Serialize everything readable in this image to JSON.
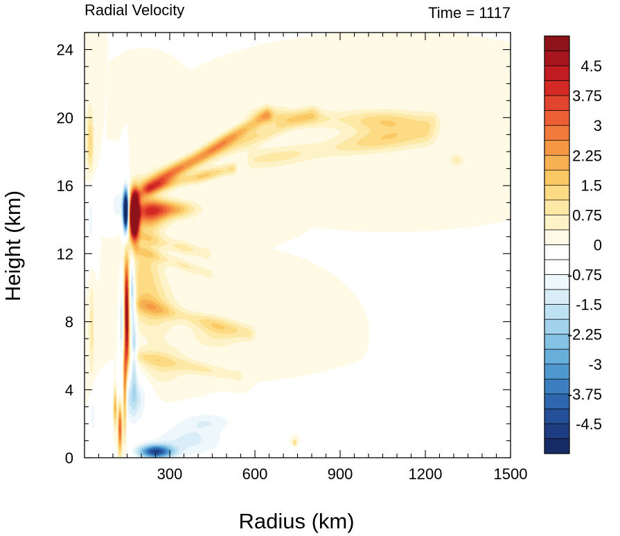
{
  "chart_data": {
    "type": "heatmap",
    "title_left": "Radial Velocity",
    "title_right": "Time = 1117",
    "xlabel": "Radius (km)",
    "ylabel": "Height (km)",
    "xlim": [
      0,
      1500
    ],
    "ylim": [
      0,
      25
    ],
    "x_ticks": [
      300,
      600,
      900,
      1200,
      1500
    ],
    "x_tick_labels": [
      "300",
      "600",
      "900",
      "1200",
      "1500"
    ],
    "y_ticks": [
      0,
      4,
      8,
      12,
      16,
      20,
      24
    ],
    "y_tick_labels": [
      "0",
      "4",
      "8",
      "12",
      "16",
      "20",
      "24"
    ],
    "colorbar": {
      "min": -5.25,
      "max": 5.25,
      "step": 0.375,
      "tick_values": [
        4.5,
        3.75,
        3,
        2.25,
        1.5,
        0.75,
        0,
        -0.75,
        -1.5,
        -2.25,
        -3,
        -3.75,
        -4.5
      ],
      "tick_labels": [
        "4.5",
        "3.75",
        "3",
        "2.25",
        "1.5",
        "0.75",
        "0",
        "-0.75",
        "-1.5",
        "-2.25",
        "-3",
        "-3.75",
        "-4.5"
      ],
      "colors": [
        "#8d1219",
        "#a7151d",
        "#c11c22",
        "#d42a26",
        "#e2452d",
        "#ec5f34",
        "#f27b3b",
        "#f59745",
        "#f8b152",
        "#fbc866",
        "#fcdb84",
        "#fde8a6",
        "#fef3c8",
        "#fffae6",
        "#ffffff",
        "#ffffff",
        "#eef7fc",
        "#d8edf7",
        "#bfe2f2",
        "#a3d3ec",
        "#86c2e4",
        "#68aedb",
        "#4f97cf",
        "#3c7fc0",
        "#2e67ae",
        "#254f98",
        "#1d3c82",
        "#172c66"
      ]
    },
    "features": [
      {
        "kind": "blob",
        "r": 175,
        "z": 14.2,
        "sr": 16,
        "sz": 1.3,
        "v": 9
      },
      {
        "kind": "blob",
        "r": 225,
        "z": 14.4,
        "sr": 60,
        "sz": 0.9,
        "v": 2.8
      },
      {
        "kind": "blob",
        "r": 295,
        "z": 14.6,
        "sr": 90,
        "sz": 0.5,
        "v": 2.2
      },
      {
        "kind": "blob",
        "r": 146,
        "z": 14.5,
        "sr": 10,
        "sz": 1.2,
        "v": -7.5
      },
      {
        "kind": "blob",
        "r": 120,
        "z": 14.8,
        "sr": 30,
        "sz": 1.0,
        "v": -1.2
      },
      {
        "kind": "blob",
        "r": 148,
        "z": 9.5,
        "sr": 8,
        "sz": 2.3,
        "v": 3.8
      },
      {
        "kind": "blob",
        "r": 150,
        "z": 7.0,
        "sr": 8,
        "sz": 2.0,
        "v": 3.2
      },
      {
        "kind": "blob",
        "r": 142,
        "z": 4.0,
        "sr": 7,
        "sz": 2.5,
        "v": 3.4
      },
      {
        "kind": "blob",
        "r": 125,
        "z": 1.8,
        "sr": 7,
        "sz": 1.6,
        "v": 3.6
      },
      {
        "kind": "blob",
        "r": 108,
        "z": 3.0,
        "sr": 6,
        "sz": 1.2,
        "v": 2.4
      },
      {
        "kind": "blob",
        "r": 168,
        "z": 10.0,
        "sr": 9,
        "sz": 1.8,
        "v": -2.2
      },
      {
        "kind": "blob",
        "r": 175,
        "z": 6.5,
        "sr": 10,
        "sz": 2.5,
        "v": -1.8
      },
      {
        "kind": "blob",
        "r": 130,
        "z": 8.0,
        "sr": 8,
        "sz": 2.5,
        "v": -1.5
      },
      {
        "kind": "blob",
        "r": 210,
        "z": 11.0,
        "sr": 60,
        "sz": 2.2,
        "v": 1.2
      },
      {
        "kind": "blob",
        "r": 245,
        "z": 8.8,
        "sr": 75,
        "sz": 1.5,
        "v": 1.0
      },
      {
        "kind": "blob",
        "r": 270,
        "z": 5.5,
        "sr": 90,
        "sz": 1.2,
        "v": 0.8
      },
      {
        "kind": "blob",
        "r": 20,
        "z": 18.5,
        "sr": 12,
        "sz": 2.0,
        "v": 1.5
      },
      {
        "kind": "blob",
        "r": 22,
        "z": 14.0,
        "sr": 14,
        "sz": 2.5,
        "v": -0.9
      },
      {
        "kind": "blob",
        "r": 25,
        "z": 7.5,
        "sr": 10,
        "sz": 3.0,
        "v": 0.9
      },
      {
        "kind": "blob",
        "r": 30,
        "z": 2.5,
        "sr": 10,
        "sz": 1.5,
        "v": -1.0
      },
      {
        "kind": "blob",
        "r": 250,
        "z": 0.35,
        "sr": 60,
        "sz": 0.4,
        "v": -4.2
      },
      {
        "kind": "blob",
        "r": 370,
        "z": 1.0,
        "sr": 150,
        "sz": 1.1,
        "v": -1.2
      },
      {
        "kind": "blob",
        "r": 440,
        "z": 2.2,
        "sr": 110,
        "sz": 0.6,
        "v": -0.8
      },
      {
        "kind": "blob",
        "r": 170,
        "z": 3.5,
        "sr": 50,
        "sz": 1.5,
        "v": -1.6
      },
      {
        "kind": "blob",
        "r": 740,
        "z": 0.9,
        "sr": 8,
        "sz": 0.2,
        "v": 1.5
      },
      {
        "kind": "blob",
        "r": 950,
        "z": 0.4,
        "sr": 200,
        "sz": 0.3,
        "v": -0.7
      },
      {
        "kind": "blob",
        "r": 470,
        "z": 7.3,
        "sr": 90,
        "sz": 0.9,
        "v": 0.8
      },
      {
        "kind": "blob",
        "r": 1080,
        "z": 19.2,
        "sr": 150,
        "sz": 1.0,
        "v": 0.9
      },
      {
        "kind": "blob",
        "r": 1310,
        "z": 17.5,
        "sr": 25,
        "sz": 0.4,
        "v": 0.8
      },
      {
        "kind": "blob",
        "r": 640,
        "z": 20.2,
        "sr": 60,
        "sz": 0.5,
        "v": 0.8
      },
      {
        "kind": "ridge",
        "r0": 190,
        "z0": 15.5,
        "r1": 640,
        "z1": 20.1,
        "w": 0.45,
        "v": 2.3
      },
      {
        "kind": "ridge",
        "r0": 210,
        "z0": 16.2,
        "r1": 800,
        "z1": 20.2,
        "w": 0.5,
        "v": 1.1
      },
      {
        "kind": "ridge",
        "r0": 700,
        "z0": 20.0,
        "r1": 1220,
        "z1": 19.8,
        "w": 0.55,
        "v": 0.9
      },
      {
        "kind": "ridge",
        "r0": 230,
        "z0": 15.8,
        "r1": 520,
        "z1": 17.0,
        "w": 0.35,
        "v": 1.6
      },
      {
        "kind": "ridge",
        "r0": 600,
        "z0": 17.5,
        "r1": 1200,
        "z1": 19.0,
        "w": 0.6,
        "v": 0.9
      },
      {
        "kind": "ridge",
        "r0": 200,
        "z0": 13.0,
        "r1": 430,
        "z1": 12.0,
        "w": 0.4,
        "v": 0.9
      },
      {
        "kind": "ridge",
        "r0": 200,
        "z0": 9.0,
        "r1": 580,
        "z1": 7.3,
        "w": 0.45,
        "v": 1.0
      },
      {
        "kind": "ridge",
        "r0": 180,
        "z0": 6.0,
        "r1": 540,
        "z1": 4.8,
        "w": 0.4,
        "v": 0.8
      },
      {
        "kind": "ridge",
        "r0": 190,
        "z0": 12.2,
        "r1": 440,
        "z1": 10.8,
        "w": 0.35,
        "v": 0.8
      }
    ]
  }
}
